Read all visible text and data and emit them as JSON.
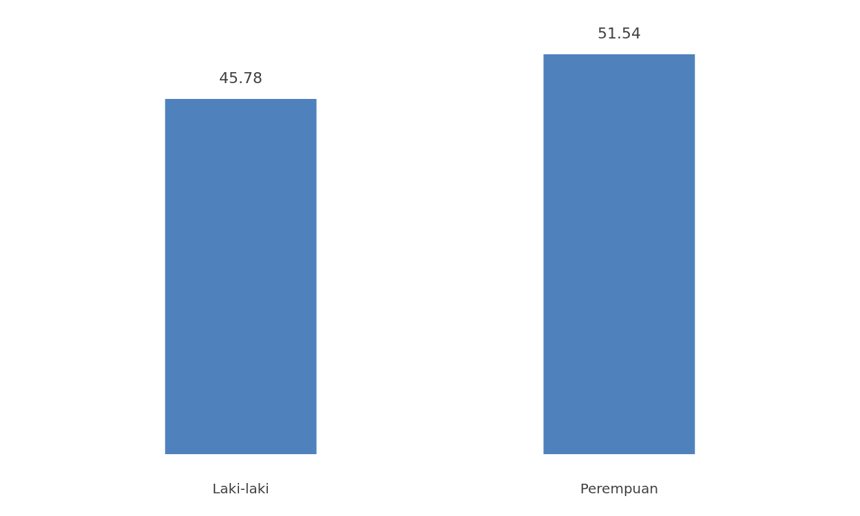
{
  "chart_data": {
    "type": "bar",
    "categories": [
      "Laki-laki",
      "Perempuan"
    ],
    "values": [
      45.78,
      51.54
    ],
    "color": "#4f81bd",
    "data_labels": true,
    "tick_labels": "x",
    "grid": false
  }
}
